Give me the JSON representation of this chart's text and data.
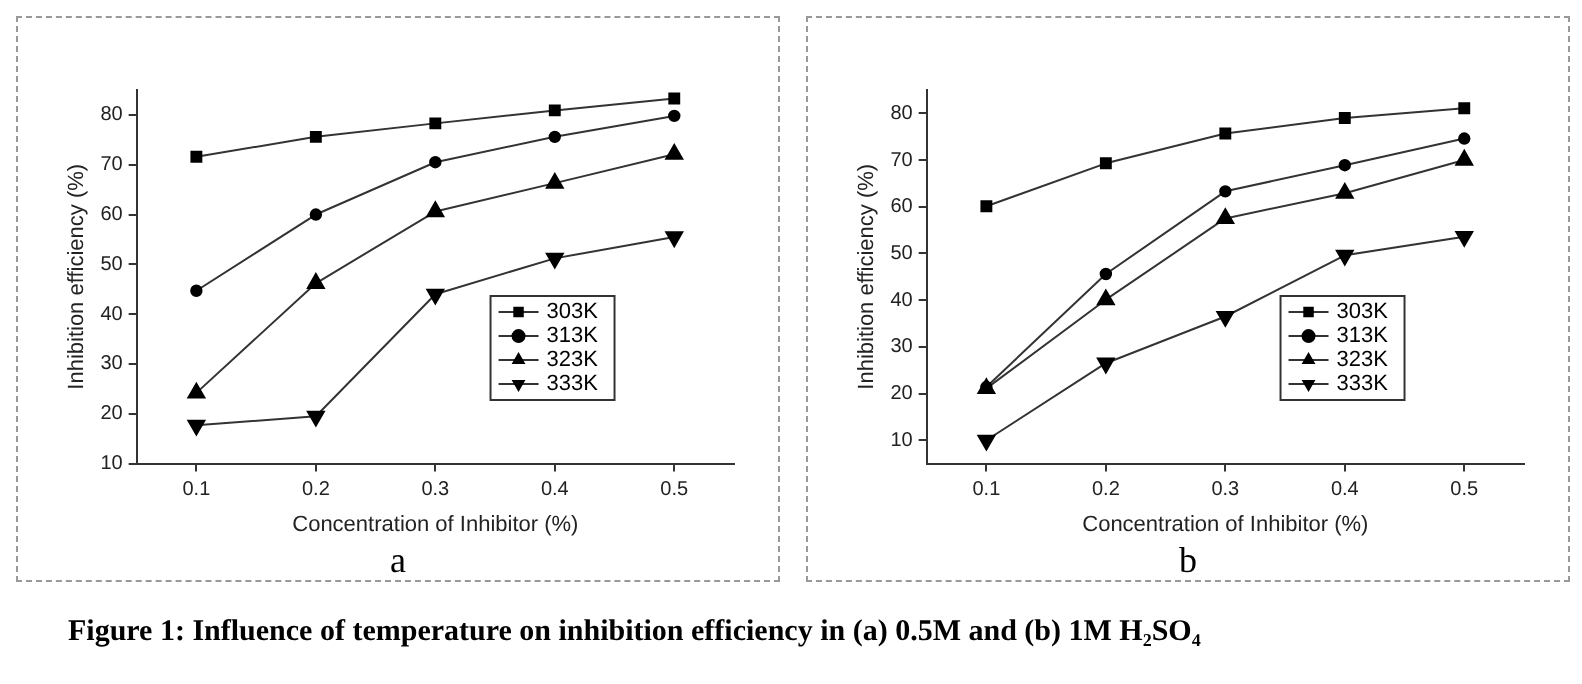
{
  "chart_data": [
    {
      "type": "line",
      "xlabel": "Concentration of Inhibitor (%)",
      "ylabel": "Inhibition efficiency (%)",
      "x": [
        0.1,
        0.2,
        0.3,
        0.4,
        0.5
      ],
      "xlim": [
        0.05,
        0.55
      ],
      "xticks": [
        0.1,
        0.2,
        0.3,
        0.4,
        0.5
      ],
      "ylim": [
        10,
        85
      ],
      "yticks": [
        10,
        20,
        30,
        40,
        50,
        60,
        70,
        80
      ],
      "grid": false,
      "legend": "bottom right",
      "line_style": "solid",
      "annotations": [
        "a"
      ],
      "series": [
        {
          "name": "303K",
          "color": "#333333",
          "marker": "square",
          "values": [
            71.6,
            75.6,
            78.3,
            80.9,
            83.3
          ]
        },
        {
          "name": "313K",
          "color": "#333333",
          "marker": "circle",
          "values": [
            44.7,
            60.0,
            70.5,
            75.6,
            79.8
          ]
        },
        {
          "name": "323K",
          "color": "#333333",
          "marker": "triangle",
          "values": [
            24.2,
            46.2,
            60.6,
            66.3,
            72.1
          ]
        },
        {
          "name": "333K",
          "color": "#333333",
          "marker": "triangle-down",
          "values": [
            17.7,
            19.5,
            44.0,
            51.2,
            55.5
          ]
        }
      ]
    },
    {
      "type": "line",
      "xlabel": "Concentration of Inhibitor (%)",
      "ylabel": "Inhibition efficiency (%)",
      "x": [
        0.1,
        0.2,
        0.3,
        0.4,
        0.5
      ],
      "xlim": [
        0.05,
        0.55
      ],
      "xticks": [
        0.1,
        0.2,
        0.3,
        0.4,
        0.5
      ],
      "ylim": [
        5,
        85
      ],
      "yticks": [
        10,
        20,
        30,
        40,
        50,
        60,
        70,
        80
      ],
      "grid": false,
      "legend": "bottom right",
      "line_style": "solid",
      "annotations": [
        "b",
        "Figure 1: Influence of temperature on inhibition efficiency in (a) 0.5M and (b) 1M H₂SO₄"
      ],
      "series": [
        {
          "name": "303K",
          "color": "#333333",
          "marker": "square",
          "values": [
            60.1,
            69.3,
            75.7,
            79.0,
            81.1
          ]
        },
        {
          "name": "313K",
          "color": "#333333",
          "marker": "circle",
          "values": [
            21.4,
            45.6,
            63.3,
            68.9,
            74.6
          ]
        },
        {
          "name": "323K",
          "color": "#333333",
          "marker": "triangle",
          "values": [
            21.1,
            40.1,
            57.5,
            62.9,
            70.0
          ]
        },
        {
          "name": "333K",
          "color": "#333333",
          "marker": "triangle-down",
          "values": [
            10.0,
            26.5,
            36.5,
            49.6,
            53.6
          ]
        }
      ]
    }
  ]
}
